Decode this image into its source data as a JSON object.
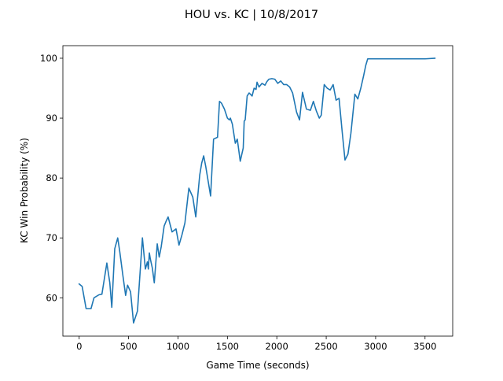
{
  "chart_data": {
    "type": "line",
    "title": "HOU vs. KC | 10/8/2017",
    "xlabel": "Game Time (seconds)",
    "ylabel": "KC Win Probability (%)",
    "xlim": [
      -165,
      3780
    ],
    "ylim": [
      53.6,
      102.1
    ],
    "x_ticks": [
      0,
      500,
      1000,
      1500,
      2000,
      2500,
      3000,
      3500
    ],
    "y_ticks": [
      60,
      70,
      80,
      90,
      100
    ],
    "grid": false,
    "legend": "none",
    "line_color": "#1f77b4",
    "series": [
      {
        "x": [
          0,
          30,
          70,
          120,
          150,
          200,
          230,
          280,
          310,
          330,
          360,
          390,
          410,
          440,
          470,
          490,
          520,
          550,
          590,
          640,
          670,
          690,
          700,
          710,
          720,
          740,
          760,
          790,
          810,
          830,
          860,
          880,
          900,
          940,
          980,
          1010,
          1040,
          1070,
          1110,
          1150,
          1180,
          1220,
          1240,
          1260,
          1280,
          1300,
          1330,
          1360,
          1400,
          1420,
          1440,
          1470,
          1500,
          1520,
          1530,
          1540,
          1550,
          1580,
          1600,
          1630,
          1660,
          1670,
          1680,
          1700,
          1720,
          1750,
          1770,
          1790,
          1800,
          1820,
          1850,
          1880,
          1900,
          1920,
          1950,
          1980,
          2010,
          2040,
          2070,
          2100,
          2130,
          2160,
          2200,
          2230,
          2260,
          2300,
          2340,
          2370,
          2400,
          2430,
          2450,
          2480,
          2510,
          2540,
          2570,
          2600,
          2630,
          2660,
          2690,
          2720,
          2750,
          2790,
          2820,
          2850,
          2880,
          2900,
          2920,
          2950,
          2990,
          3010,
          3040,
          3070,
          3100,
          3130,
          3160,
          3200,
          3300,
          3400,
          3500,
          3600
        ],
        "values": [
          62.3,
          61.9,
          58.2,
          58.2,
          60.0,
          60.5,
          60.6,
          65.8,
          62.5,
          58.4,
          68.2,
          70.0,
          67.8,
          64.0,
          60.4,
          62.1,
          61.0,
          55.8,
          57.8,
          70.0,
          64.8,
          66.0,
          64.8,
          67.5,
          66.5,
          65.0,
          62.5,
          69.0,
          66.8,
          68.5,
          72.0,
          72.8,
          73.5,
          71.0,
          71.5,
          68.8,
          70.5,
          72.5,
          78.3,
          76.8,
          73.5,
          80.5,
          82.5,
          83.7,
          82.0,
          80.0,
          77.0,
          86.5,
          86.8,
          92.8,
          92.5,
          91.5,
          90.0,
          89.7,
          90.0,
          89.5,
          89.0,
          85.8,
          86.5,
          82.8,
          85.0,
          89.5,
          89.7,
          93.7,
          94.2,
          93.7,
          95.0,
          94.8,
          96.0,
          95.2,
          95.8,
          95.5,
          96.1,
          96.5,
          96.6,
          96.5,
          95.8,
          96.2,
          95.6,
          95.6,
          95.2,
          94.2,
          91.0,
          89.7,
          94.3,
          91.5,
          91.3,
          92.8,
          91.2,
          90.0,
          90.5,
          95.6,
          95.0,
          94.7,
          95.6,
          93.0,
          93.3,
          88.0,
          83.0,
          84.0,
          87.5,
          94.0,
          93.2,
          95.0,
          97.2,
          98.8,
          99.9,
          99.9,
          99.9,
          99.9,
          99.9,
          99.9,
          99.9,
          99.9,
          99.9,
          99.9,
          99.9,
          99.9,
          99.9,
          100.0
        ]
      }
    ]
  }
}
